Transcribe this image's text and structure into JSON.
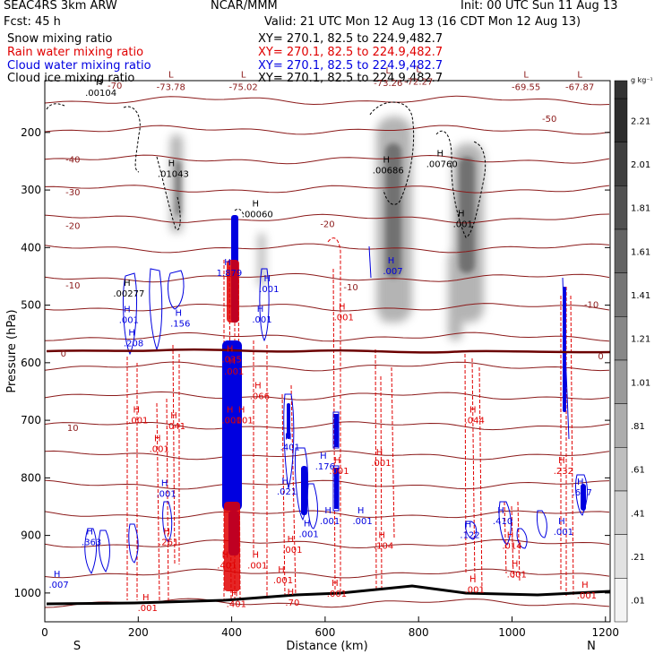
{
  "header": {
    "model": "SEAC4RS  3km ARW",
    "forecast": "Fcst:   45 h",
    "center": "NCAR/MMM",
    "init": "Init: 00 UTC Sun 11 Aug 13",
    "valid": "Valid: 21 UTC Mon 12 Aug 13 (16 CDT Mon 12 Aug 13)"
  },
  "fields": [
    {
      "name": "Snow mixing ratio",
      "xy": "XY= 270.1, 82.5 to 224.9,482.7",
      "color": "#000000"
    },
    {
      "name": "Rain water mixing ratio",
      "xy": "XY= 270.1, 82.5 to 224.9,482.7",
      "color": "#e00000"
    },
    {
      "name": "Cloud water mixing ratio",
      "xy": "XY= 270.1, 82.5 to 224.9,482.7",
      "color": "#0000e0"
    },
    {
      "name": "Cloud ice mixing ratio",
      "xy": "XY= 270.1, 82.5 to 224.9,482.7",
      "color": "#000000"
    }
  ],
  "chart_data": {
    "type": "cross-section contour",
    "xlabel": "Distance (km)",
    "ylabel": "Pressure (hPa)",
    "xlim": [
      0,
      1210
    ],
    "ylim": [
      1050,
      110
    ],
    "xticks": [
      0,
      200,
      400,
      600,
      800,
      1000,
      1200
    ],
    "yticks": [
      200,
      300,
      400,
      500,
      600,
      700,
      800,
      900,
      1000
    ],
    "x_endpoints": [
      "S",
      "N"
    ],
    "colorbar": {
      "unit": "g kg⁻¹",
      "labels": [
        "2.21",
        "2.01",
        "1.81",
        "1.61",
        "1.41",
        "1.21",
        "1.01",
        ".81",
        ".61",
        ".41",
        ".21",
        ".01"
      ],
      "levels": [
        2.21,
        2.01,
        1.81,
        1.61,
        1.41,
        1.21,
        1.01,
        0.81,
        0.61,
        0.41,
        0.21,
        0.01
      ]
    },
    "temperature_isotherms": {
      "levels": [
        -70,
        -60,
        -50,
        -40,
        -30,
        -20,
        -10,
        0,
        10,
        20
      ],
      "labels": [
        {
          "text": "-70",
          "x": 150,
          "p": 118
        },
        {
          "text": "-50",
          "x": 1080,
          "p": 175
        },
        {
          "text": "-40",
          "x": 60,
          "p": 246
        },
        {
          "text": "-30",
          "x": 60,
          "p": 303
        },
        {
          "text": "-20",
          "x": 60,
          "p": 361
        },
        {
          "text": "-20",
          "x": 605,
          "p": 358
        },
        {
          "text": "-10",
          "x": 60,
          "p": 465
        },
        {
          "text": "-10",
          "x": 655,
          "p": 468
        },
        {
          "text": "-10",
          "x": 1170,
          "p": 498
        },
        {
          "text": "0",
          "x": 40,
          "p": 583
        },
        {
          "text": "0",
          "x": 1190,
          "p": 588
        },
        {
          "text": "10",
          "x": 60,
          "p": 712
        }
      ]
    },
    "min_temperature_labels": [
      {
        "text": "-73.78",
        "x": 270,
        "p": 120
      },
      {
        "text": "-75.02",
        "x": 425,
        "p": 120
      },
      {
        "text": "-73.26",
        "x": 735,
        "p": 113
      },
      {
        "text": "-72.27",
        "x": 800,
        "p": 111
      },
      {
        "text": "-69.55",
        "x": 1030,
        "p": 120
      },
      {
        "text": "-67.87",
        "x": 1145,
        "p": 120
      }
    ],
    "maxima": [
      {
        "field": "cloud_ice",
        "text": ".00104",
        "x": 120,
        "p": 130
      },
      {
        "field": "cloud_ice",
        "text": ".01043",
        "x": 275,
        "p": 271
      },
      {
        "field": "cloud_ice",
        "text": ".00060",
        "x": 455,
        "p": 341
      },
      {
        "field": "cloud_ice",
        "text": ".00686",
        "x": 735,
        "p": 265
      },
      {
        "field": "cloud_ice",
        "text": ".00760",
        "x": 850,
        "p": 254
      },
      {
        "field": "cloud_ice",
        "text": ".00277",
        "x": 180,
        "p": 479
      },
      {
        "field": "snow",
        "text": ".001",
        "x": 895,
        "p": 358
      },
      {
        "field": "cloud_water",
        "text": ".007",
        "x": 745,
        "p": 440
      },
      {
        "field": "cloud_water",
        "text": "1.879",
        "x": 395,
        "p": 443
      },
      {
        "field": "cloud_water",
        "text": ".001",
        "x": 480,
        "p": 471
      },
      {
        "field": "cloud_water",
        "text": ".001",
        "x": 465,
        "p": 524
      },
      {
        "field": "cloud_water",
        "text": ".001",
        "x": 180,
        "p": 525
      },
      {
        "field": "cloud_water",
        "text": ".156",
        "x": 290,
        "p": 531
      },
      {
        "field": "cloud_water",
        "text": ".208",
        "x": 190,
        "p": 565
      },
      {
        "field": "cloud_water",
        "text": ".401",
        "x": 525,
        "p": 746
      },
      {
        "field": "cloud_water",
        "text": ".176",
        "x": 600,
        "p": 779
      },
      {
        "field": "cloud_water",
        "text": ".001",
        "x": 260,
        "p": 827
      },
      {
        "field": "cloud_water",
        "text": ".021",
        "x": 518,
        "p": 823
      },
      {
        "field": "cloud_water",
        "text": ".001",
        "x": 610,
        "p": 874
      },
      {
        "field": "cloud_water",
        "text": ".001",
        "x": 680,
        "p": 874
      },
      {
        "field": "cloud_water",
        "text": ".001",
        "x": 565,
        "p": 897
      },
      {
        "field": "cloud_water",
        "text": ".122",
        "x": 910,
        "p": 898
      },
      {
        "field": "cloud_water",
        "text": ".410",
        "x": 980,
        "p": 874
      },
      {
        "field": "cloud_water",
        "text": ".627",
        "x": 1150,
        "p": 824
      },
      {
        "field": "cloud_water",
        "text": ".001",
        "x": 1110,
        "p": 893
      },
      {
        "field": "cloud_water",
        "text": ".363",
        "x": 100,
        "p": 911
      },
      {
        "field": "cloud_water",
        "text": ".007",
        "x": 30,
        "p": 985
      },
      {
        "field": "rain",
        "text": ".001",
        "x": 640,
        "p": 520
      },
      {
        "field": "rain",
        "text": ".035",
        "x": 400,
        "p": 593
      },
      {
        "field": "rain",
        "text": ".001",
        "x": 405,
        "p": 614
      },
      {
        "field": "rain",
        "text": ".066",
        "x": 460,
        "p": 657
      },
      {
        "field": "rain",
        "text": ".001",
        "x": 400,
        "p": 699
      },
      {
        "field": "rain",
        "text": ".001",
        "x": 425,
        "p": 699
      },
      {
        "field": "rain",
        "text": ".001",
        "x": 200,
        "p": 699
      },
      {
        "field": "rain",
        "text": ".041",
        "x": 280,
        "p": 709
      },
      {
        "field": "rain",
        "text": ".044",
        "x": 920,
        "p": 699
      },
      {
        "field": "rain",
        "text": ".001",
        "x": 245,
        "p": 749
      },
      {
        "field": "rain",
        "text": ".001",
        "x": 720,
        "p": 773
      },
      {
        "field": "rain",
        "text": ".232",
        "x": 1110,
        "p": 787
      },
      {
        "field": "rain",
        "text": ".001",
        "x": 630,
        "p": 787
      },
      {
        "field": "rain",
        "text": ".001",
        "x": 530,
        "p": 924
      },
      {
        "field": "rain",
        "text": ".261",
        "x": 265,
        "p": 911
      },
      {
        "field": "rain",
        "text": ".104",
        "x": 725,
        "p": 917
      },
      {
        "field": "rain",
        "text": ".014",
        "x": 1000,
        "p": 917
      },
      {
        "field": "rain",
        "text": ".401",
        "x": 390,
        "p": 951
      },
      {
        "field": "rain",
        "text": ".001",
        "x": 455,
        "p": 951
      },
      {
        "field": "rain",
        "text": ".001",
        "x": 510,
        "p": 977
      },
      {
        "field": "rain",
        "text": ".001",
        "x": 1010,
        "p": 967
      },
      {
        "field": "rain",
        "text": ".001",
        "x": 920,
        "p": 993
      },
      {
        "field": "rain",
        "text": ".001",
        "x": 625,
        "p": 1000
      },
      {
        "field": "rain",
        "text": ".001",
        "x": 1160,
        "p": 1003
      },
      {
        "field": "rain",
        "text": ".401",
        "x": 410,
        "p": 1018
      },
      {
        "field": "rain",
        "text": ".70",
        "x": 530,
        "p": 1016
      },
      {
        "field": "rain",
        "text": ".001",
        "x": 220,
        "p": 1025
      }
    ]
  }
}
